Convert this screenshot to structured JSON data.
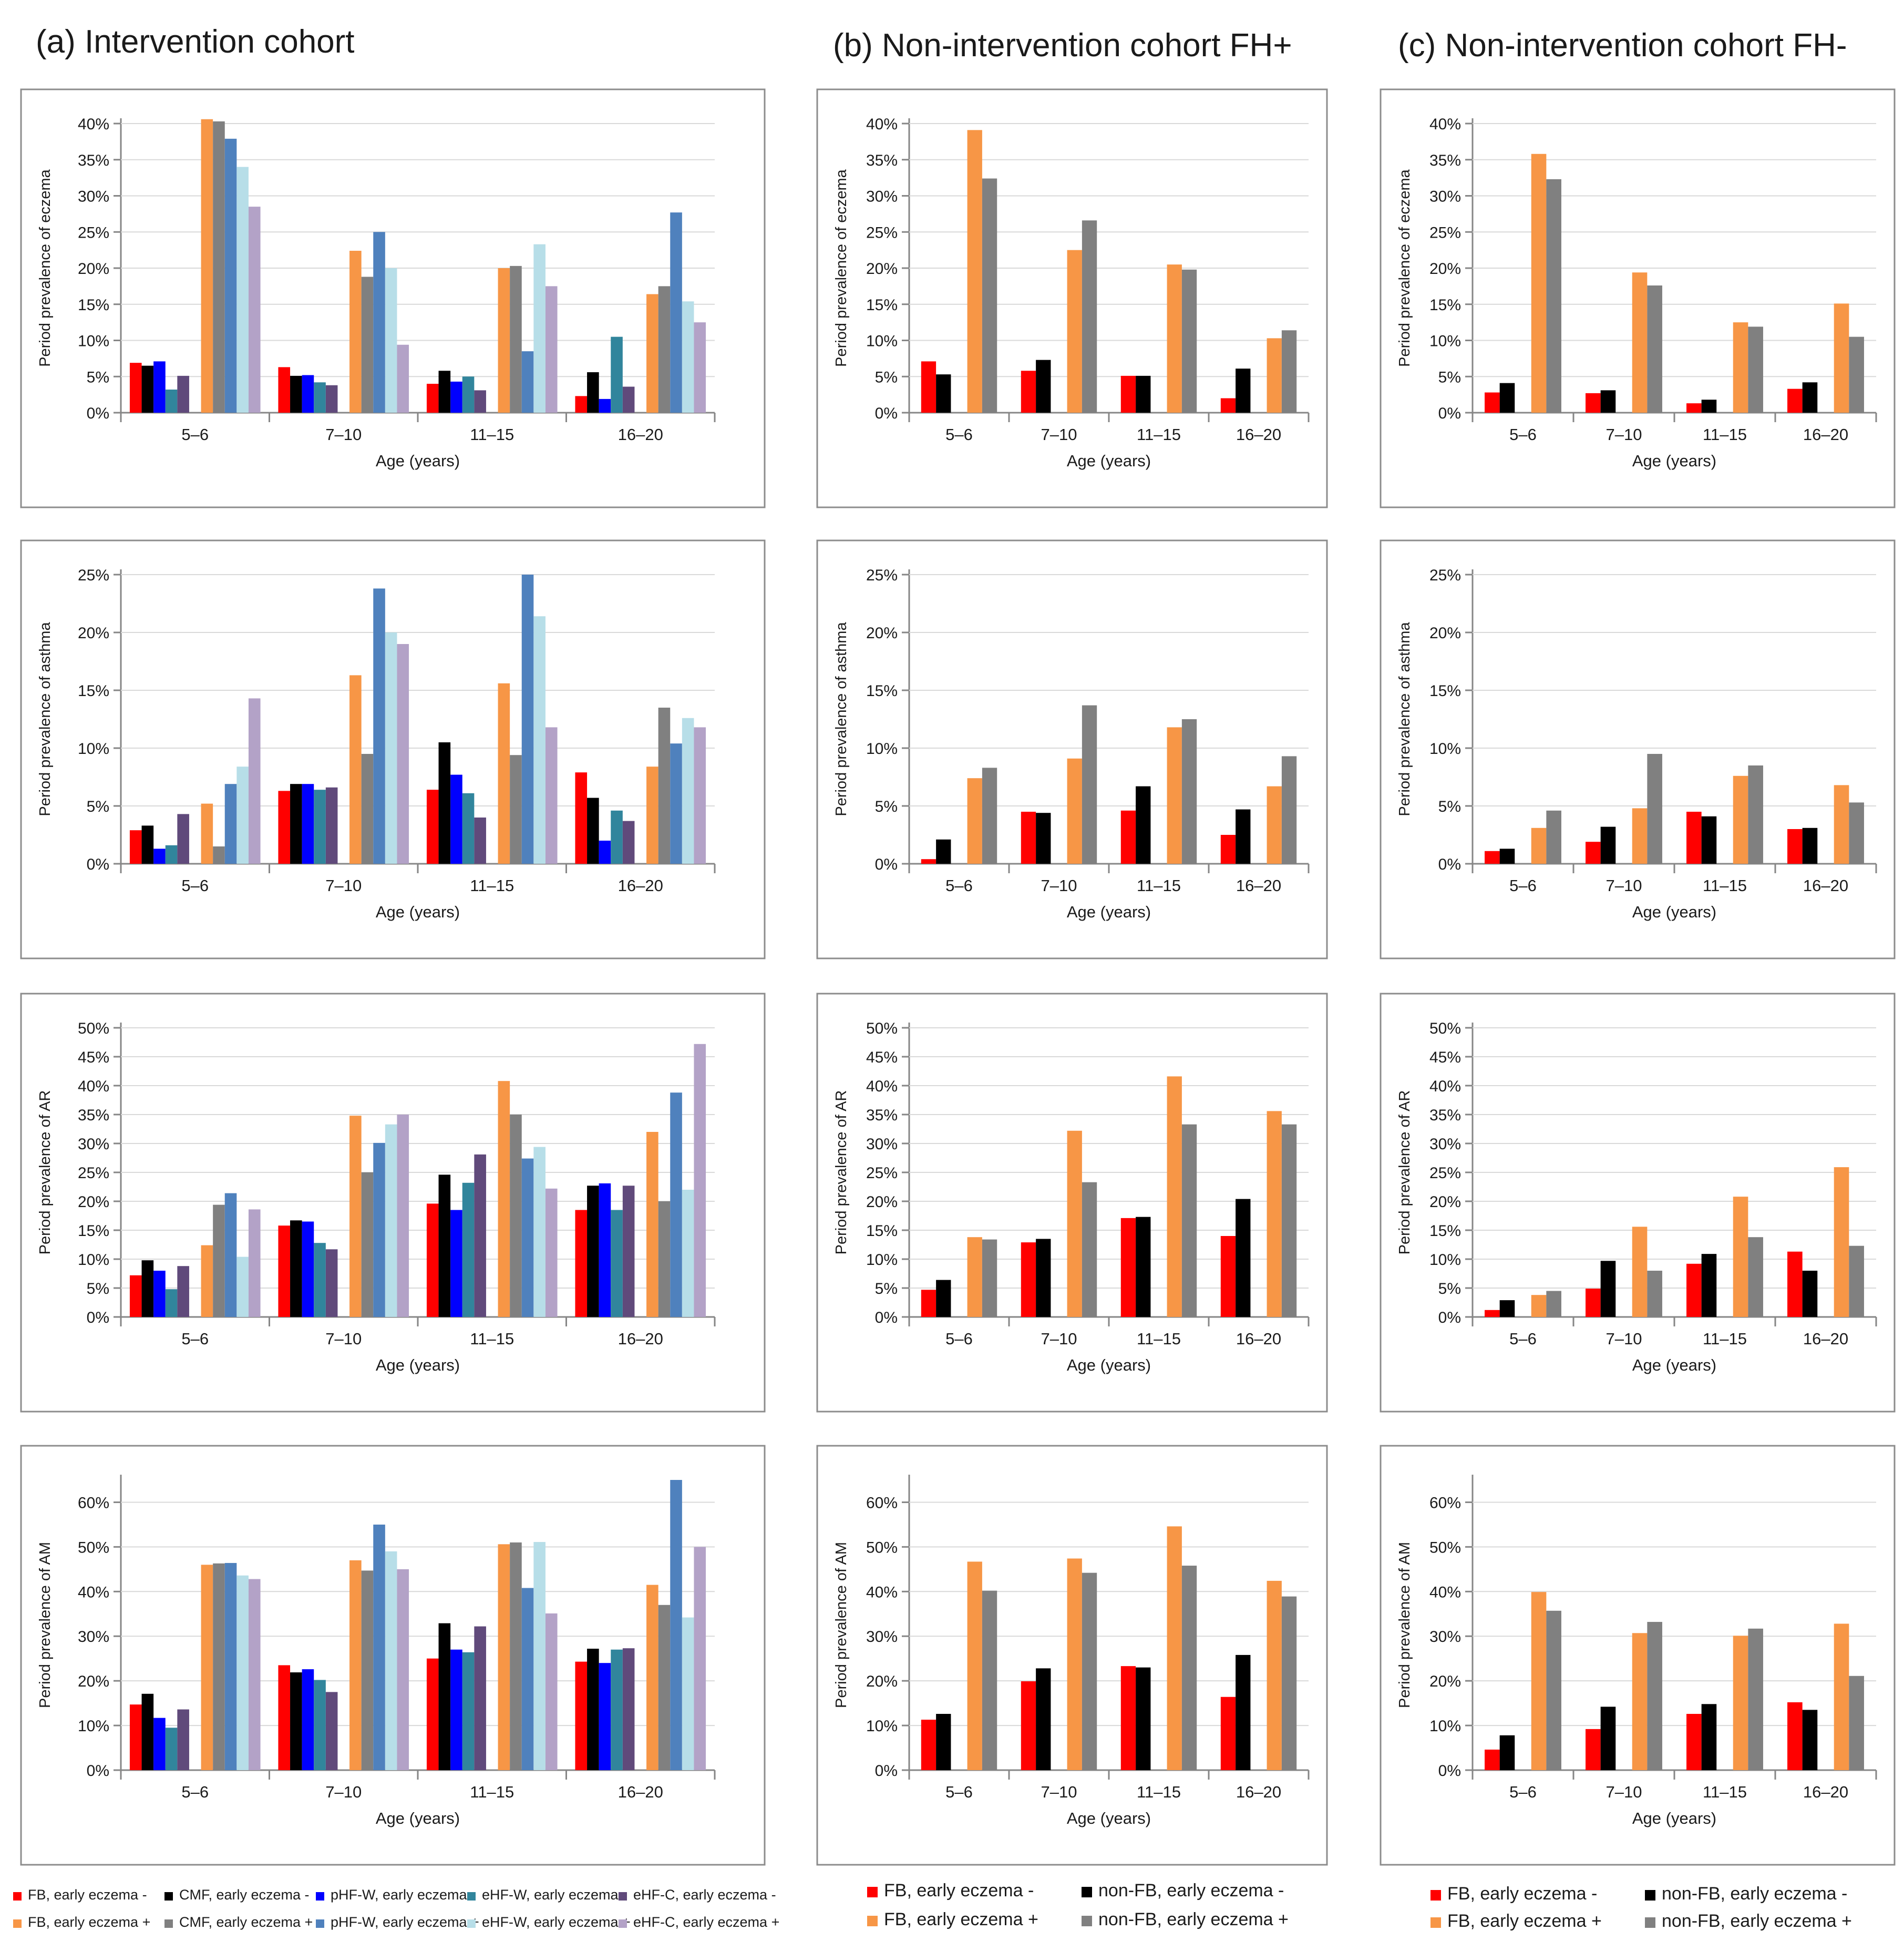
{
  "groups": [
    "5–6",
    "7–10",
    "11–15",
    "16–20"
  ],
  "xlabel": "Age (years)",
  "columns": [
    {
      "title": "(a) Intervention cohort",
      "cohort": "intervention"
    },
    {
      "title": "(b) Non-intervention cohort FH+",
      "cohort": "fhplus"
    },
    {
      "title": "(c) Non-intervention cohort FH-",
      "cohort": "fhminus"
    }
  ],
  "rows": [
    {
      "outcome": "eczema",
      "ylabel": "Period prevalence of eczema"
    },
    {
      "outcome": "asthma",
      "ylabel": "Period prevalence of asthma"
    },
    {
      "outcome": "AR",
      "ylabel": "Period prevalence of AR"
    },
    {
      "outcome": "AM",
      "ylabel": "Period prevalence of AM"
    }
  ],
  "colors": {
    "intervention": [
      "#ff0000",
      "#000000",
      "#0000ff",
      "#31859c",
      "#604a7b",
      "#f79646",
      "#808080",
      "#4f81bd",
      "#b7dee8",
      "#b3a2c7"
    ],
    "nonintervention": [
      "#ff0000",
      "#000000",
      "#f79646",
      "#808080"
    ]
  },
  "legends": {
    "intervention": [
      "FB, early eczema -",
      "CMF, early eczema -",
      "pHF-W, early eczema -",
      "eHF-W, early eczema -",
      "eHF-C, early eczema -",
      "FB, early eczema +",
      "CMF, early eczema +",
      "pHF-W, early eczema +",
      "eHF-W, early eczema +",
      "eHF-C, early eczema +"
    ],
    "nonintervention": [
      "FB, early eczema -",
      "non-FB, early eczema -",
      "FB, early eczema +",
      "non-FB, early eczema +"
    ]
  },
  "chart_data": [
    {
      "type": "bar",
      "cohort": "intervention",
      "outcome": "eczema",
      "title": "(a) Intervention cohort",
      "xlabel": "Age (years)",
      "ylabel": "Period prevalence of eczema",
      "ylim": [
        0,
        40
      ],
      "yticks": [
        0,
        5,
        10,
        15,
        20,
        25,
        30,
        35,
        40
      ],
      "categories": [
        "5–6",
        "7–10",
        "11–15",
        "16–20"
      ],
      "series": [
        {
          "name": "FB, early eczema -",
          "values": [
            6.9,
            6.3,
            4.0,
            2.3
          ]
        },
        {
          "name": "CMF, early eczema -",
          "values": [
            6.5,
            5.1,
            5.8,
            5.6
          ]
        },
        {
          "name": "pHF-W, early eczema -",
          "values": [
            7.1,
            5.2,
            4.3,
            1.9
          ]
        },
        {
          "name": "eHF-W, early eczema -",
          "values": [
            3.2,
            4.2,
            5.0,
            10.5
          ]
        },
        {
          "name": "eHF-C, early eczema -",
          "values": [
            5.1,
            3.8,
            3.1,
            3.6
          ]
        },
        {
          "name": "FB, early eczema +",
          "values": [
            40.6,
            22.4,
            20.0,
            16.4
          ]
        },
        {
          "name": "CMF, early eczema +",
          "values": [
            40.3,
            18.8,
            20.3,
            17.5
          ]
        },
        {
          "name": "pHF-W, early eczema +",
          "values": [
            37.9,
            25.0,
            8.5,
            27.7
          ]
        },
        {
          "name": "eHF-W, early eczema +",
          "values": [
            34.0,
            20.0,
            23.3,
            15.4
          ]
        },
        {
          "name": "eHF-C, early eczema +",
          "values": [
            28.5,
            9.4,
            17.5,
            12.5
          ]
        }
      ]
    },
    {
      "type": "bar",
      "cohort": "fhplus",
      "outcome": "eczema",
      "title": "(b) Non-intervention cohort FH+",
      "xlabel": "Age (years)",
      "ylabel": "Period prevalence of eczema",
      "ylim": [
        0,
        40
      ],
      "yticks": [
        0,
        5,
        10,
        15,
        20,
        25,
        30,
        35,
        40
      ],
      "categories": [
        "5–6",
        "7–10",
        "11–15",
        "16–20"
      ],
      "series": [
        {
          "name": "FB, early eczema -",
          "values": [
            7.1,
            5.8,
            5.1,
            2.0
          ]
        },
        {
          "name": "non-FB, early eczema -",
          "values": [
            5.3,
            7.3,
            5.1,
            6.1
          ]
        },
        {
          "name": "FB, early eczema +",
          "values": [
            39.1,
            22.5,
            20.5,
            10.3
          ]
        },
        {
          "name": "non-FB, early eczema +",
          "values": [
            32.4,
            26.6,
            19.8,
            11.4
          ]
        }
      ]
    },
    {
      "type": "bar",
      "cohort": "fhminus",
      "outcome": "eczema",
      "title": "(c) Non-intervention cohort FH-",
      "xlabel": "Age (years)",
      "ylabel": "Period prevalence of eczema",
      "ylim": [
        0,
        40
      ],
      "yticks": [
        0,
        5,
        10,
        15,
        20,
        25,
        30,
        35,
        40
      ],
      "categories": [
        "5–6",
        "7–10",
        "11–15",
        "16–20"
      ],
      "series": [
        {
          "name": "FB, early eczema -",
          "values": [
            2.8,
            2.7,
            1.3,
            3.3
          ]
        },
        {
          "name": "non-FB, early eczema -",
          "values": [
            4.1,
            3.1,
            1.8,
            4.2
          ]
        },
        {
          "name": "FB, early eczema +",
          "values": [
            35.8,
            19.4,
            12.5,
            15.1
          ]
        },
        {
          "name": "non-FB, early eczema +",
          "values": [
            32.3,
            17.6,
            11.9,
            10.5
          ]
        }
      ]
    },
    {
      "type": "bar",
      "cohort": "intervention",
      "outcome": "asthma",
      "title": "(a) Intervention cohort",
      "xlabel": "Age (years)",
      "ylabel": "Period prevalence of asthma",
      "ylim": [
        0,
        25
      ],
      "yticks": [
        0,
        5,
        10,
        15,
        20,
        25
      ],
      "categories": [
        "5–6",
        "7–10",
        "11–15",
        "16–20"
      ],
      "series": [
        {
          "name": "FB, early eczema -",
          "values": [
            2.9,
            6.3,
            6.4,
            7.9
          ]
        },
        {
          "name": "CMF, early eczema -",
          "values": [
            3.3,
            6.9,
            10.5,
            5.7
          ]
        },
        {
          "name": "pHF-W, early eczema -",
          "values": [
            1.3,
            6.9,
            7.7,
            2.0
          ]
        },
        {
          "name": "eHF-W, early eczema -",
          "values": [
            1.6,
            6.4,
            6.1,
            4.6
          ]
        },
        {
          "name": "eHF-C, early eczema -",
          "values": [
            4.3,
            6.6,
            4.0,
            3.7
          ]
        },
        {
          "name": "FB, early eczema +",
          "values": [
            5.2,
            16.3,
            15.6,
            8.4
          ]
        },
        {
          "name": "CMF, early eczema +",
          "values": [
            1.5,
            9.5,
            9.4,
            13.5
          ]
        },
        {
          "name": "pHF-W, early eczema +",
          "values": [
            6.9,
            23.8,
            25.0,
            10.4
          ]
        },
        {
          "name": "eHF-W, early eczema +",
          "values": [
            8.4,
            20.0,
            21.4,
            12.6
          ]
        },
        {
          "name": "eHF-C, early eczema +",
          "values": [
            14.3,
            19.0,
            11.8,
            11.8
          ]
        }
      ]
    },
    {
      "type": "bar",
      "cohort": "fhplus",
      "outcome": "asthma",
      "title": "(b) Non-intervention cohort FH+",
      "xlabel": "Age (years)",
      "ylabel": "Period prevalence of asthma",
      "ylim": [
        0,
        25
      ],
      "yticks": [
        0,
        5,
        10,
        15,
        20,
        25
      ],
      "categories": [
        "5–6",
        "7–10",
        "11–15",
        "16–20"
      ],
      "series": [
        {
          "name": "FB, early eczema -",
          "values": [
            0.4,
            4.5,
            4.6,
            2.5
          ]
        },
        {
          "name": "non-FB, early eczema -",
          "values": [
            2.1,
            4.4,
            6.7,
            4.7
          ]
        },
        {
          "name": "FB, early eczema +",
          "values": [
            7.4,
            9.1,
            11.8,
            6.7
          ]
        },
        {
          "name": "non-FB, early eczema +",
          "values": [
            8.3,
            13.7,
            12.5,
            9.3
          ]
        }
      ]
    },
    {
      "type": "bar",
      "cohort": "fhminus",
      "outcome": "asthma",
      "title": "(c) Non-intervention cohort FH-",
      "xlabel": "Age (years)",
      "ylabel": "Period prevalence of asthma",
      "ylim": [
        0,
        25
      ],
      "yticks": [
        0,
        5,
        10,
        15,
        20,
        25
      ],
      "categories": [
        "5–6",
        "7–10",
        "11–15",
        "16–20"
      ],
      "series": [
        {
          "name": "FB, early eczema -",
          "values": [
            1.1,
            1.9,
            4.5,
            3.0
          ]
        },
        {
          "name": "non-FB, early eczema -",
          "values": [
            1.3,
            3.2,
            4.1,
            3.1
          ]
        },
        {
          "name": "FB, early eczema +",
          "values": [
            3.1,
            4.8,
            7.6,
            6.8
          ]
        },
        {
          "name": "non-FB, early eczema +",
          "values": [
            4.6,
            9.5,
            8.5,
            5.3
          ]
        }
      ]
    },
    {
      "type": "bar",
      "cohort": "intervention",
      "outcome": "AR",
      "title": "(a) Intervention cohort",
      "xlabel": "Age (years)",
      "ylabel": "Period prevalence of AR",
      "ylim": [
        0,
        50
      ],
      "yticks": [
        0,
        5,
        10,
        15,
        20,
        25,
        30,
        35,
        40,
        45,
        50
      ],
      "categories": [
        "5–6",
        "7–10",
        "11–15",
        "16–20"
      ],
      "series": [
        {
          "name": "FB, early eczema -",
          "values": [
            7.2,
            15.8,
            19.6,
            18.5
          ]
        },
        {
          "name": "CMF, early eczema -",
          "values": [
            9.8,
            16.7,
            24.6,
            22.7
          ]
        },
        {
          "name": "pHF-W, early eczema -",
          "values": [
            8.0,
            16.5,
            18.5,
            23.1
          ]
        },
        {
          "name": "eHF-W, early eczema -",
          "values": [
            4.8,
            12.8,
            23.2,
            18.5
          ]
        },
        {
          "name": "eHF-C, early eczema -",
          "values": [
            8.8,
            11.7,
            28.1,
            22.7
          ]
        },
        {
          "name": "FB, early eczema +",
          "values": [
            12.4,
            34.8,
            40.8,
            32.0
          ]
        },
        {
          "name": "CMF, early eczema +",
          "values": [
            19.4,
            25.0,
            35.0,
            20.0
          ]
        },
        {
          "name": "pHF-W, early eczema +",
          "values": [
            21.4,
            30.1,
            27.4,
            38.8
          ]
        },
        {
          "name": "eHF-W, early eczema +",
          "values": [
            10.4,
            33.3,
            29.4,
            22.0
          ]
        },
        {
          "name": "eHF-C, early eczema +",
          "values": [
            18.6,
            35.0,
            22.2,
            47.2
          ]
        }
      ]
    },
    {
      "type": "bar",
      "cohort": "fhplus",
      "outcome": "AR",
      "title": "(b) Non-intervention cohort FH+",
      "xlabel": "Age (years)",
      "ylabel": "Period prevalence of AR",
      "ylim": [
        0,
        50
      ],
      "yticks": [
        0,
        5,
        10,
        15,
        20,
        25,
        30,
        35,
        40,
        45,
        50
      ],
      "categories": [
        "5–6",
        "7–10",
        "11–15",
        "16–20"
      ],
      "series": [
        {
          "name": "FB, early eczema -",
          "values": [
            4.7,
            12.9,
            17.1,
            14.0
          ]
        },
        {
          "name": "non-FB, early eczema -",
          "values": [
            6.4,
            13.5,
            17.3,
            20.4
          ]
        },
        {
          "name": "FB, early eczema +",
          "values": [
            13.8,
            32.2,
            41.6,
            35.6
          ]
        },
        {
          "name": "non-FB, early eczema +",
          "values": [
            13.4,
            23.3,
            33.3,
            33.3
          ]
        }
      ]
    },
    {
      "type": "bar",
      "cohort": "fhminus",
      "outcome": "AR",
      "title": "(c) Non-intervention cohort FH-",
      "xlabel": "Age (years)",
      "ylabel": "Period prevalence of AR",
      "ylim": [
        0,
        50
      ],
      "yticks": [
        0,
        5,
        10,
        15,
        20,
        25,
        30,
        35,
        40,
        45,
        50
      ],
      "categories": [
        "5–6",
        "7–10",
        "11–15",
        "16–20"
      ],
      "series": [
        {
          "name": "FB, early eczema -",
          "values": [
            1.2,
            4.9,
            9.2,
            11.3
          ]
        },
        {
          "name": "non-FB, early eczema -",
          "values": [
            2.9,
            9.7,
            10.9,
            8.0
          ]
        },
        {
          "name": "FB, early eczema +",
          "values": [
            3.8,
            15.6,
            20.8,
            25.9
          ]
        },
        {
          "name": "non-FB, early eczema +",
          "values": [
            4.5,
            8.0,
            13.8,
            12.3
          ]
        }
      ]
    },
    {
      "type": "bar",
      "cohort": "intervention",
      "outcome": "AM",
      "title": "(a) Intervention cohort",
      "xlabel": "Age (years)",
      "ylabel": "Period prevalence of AM",
      "ylim": [
        0,
        65
      ],
      "yticks": [
        0,
        10,
        20,
        30,
        40,
        50,
        60
      ],
      "categories": [
        "5–6",
        "7–10",
        "11–15",
        "16–20"
      ],
      "series": [
        {
          "name": "FB, early eczema -",
          "values": [
            14.7,
            23.5,
            25.0,
            24.3
          ]
        },
        {
          "name": "CMF, early eczema -",
          "values": [
            17.1,
            21.9,
            32.9,
            27.2
          ]
        },
        {
          "name": "pHF-W, early eczema -",
          "values": [
            11.7,
            22.6,
            27.0,
            24.0
          ]
        },
        {
          "name": "eHF-W, early eczema -",
          "values": [
            9.5,
            20.2,
            26.4,
            27.0
          ]
        },
        {
          "name": "eHF-C, early eczema -",
          "values": [
            13.6,
            17.5,
            32.2,
            27.3
          ]
        },
        {
          "name": "FB, early eczema +",
          "values": [
            46.0,
            47.0,
            50.6,
            41.5
          ]
        },
        {
          "name": "CMF, early eczema +",
          "values": [
            46.3,
            44.7,
            51.0,
            37.0
          ]
        },
        {
          "name": "pHF-W, early eczema +",
          "values": [
            46.4,
            55.0,
            40.8,
            65.0
          ]
        },
        {
          "name": "eHF-W, early eczema +",
          "values": [
            43.6,
            49.0,
            51.1,
            34.2
          ]
        },
        {
          "name": "eHF-C, early eczema +",
          "values": [
            42.8,
            45.0,
            35.1,
            50.0
          ]
        }
      ]
    },
    {
      "type": "bar",
      "cohort": "fhplus",
      "outcome": "AM",
      "title": "(b) Non-intervention cohort FH+",
      "xlabel": "Age (years)",
      "ylabel": "Period prevalence of AM",
      "ylim": [
        0,
        65
      ],
      "yticks": [
        0,
        10,
        20,
        30,
        40,
        50,
        60
      ],
      "categories": [
        "5–6",
        "7–10",
        "11–15",
        "16–20"
      ],
      "series": [
        {
          "name": "FB, early eczema -",
          "values": [
            11.3,
            19.9,
            23.3,
            16.4
          ]
        },
        {
          "name": "non-FB, early eczema -",
          "values": [
            12.6,
            22.8,
            23.0,
            25.8
          ]
        },
        {
          "name": "FB, early eczema +",
          "values": [
            46.7,
            47.4,
            54.6,
            42.4
          ]
        },
        {
          "name": "non-FB, early eczema +",
          "values": [
            40.2,
            44.2,
            45.8,
            38.9
          ]
        }
      ]
    },
    {
      "type": "bar",
      "cohort": "fhminus",
      "outcome": "AM",
      "title": "(c) Non-intervention cohort FH-",
      "xlabel": "Age (years)",
      "ylabel": "Period prevalence of AM",
      "ylim": [
        0,
        65
      ],
      "yticks": [
        0,
        10,
        20,
        30,
        40,
        50,
        60
      ],
      "categories": [
        "5–6",
        "7–10",
        "11–15",
        "16–20"
      ],
      "series": [
        {
          "name": "FB, early eczema -",
          "values": [
            4.6,
            9.2,
            12.6,
            15.2
          ]
        },
        {
          "name": "non-FB, early eczema -",
          "values": [
            7.8,
            14.2,
            14.8,
            13.5
          ]
        },
        {
          "name": "FB, early eczema +",
          "values": [
            39.9,
            30.7,
            30.1,
            32.8
          ]
        },
        {
          "name": "non-FB, early eczema +",
          "values": [
            35.7,
            33.2,
            31.7,
            21.1
          ]
        }
      ]
    }
  ]
}
